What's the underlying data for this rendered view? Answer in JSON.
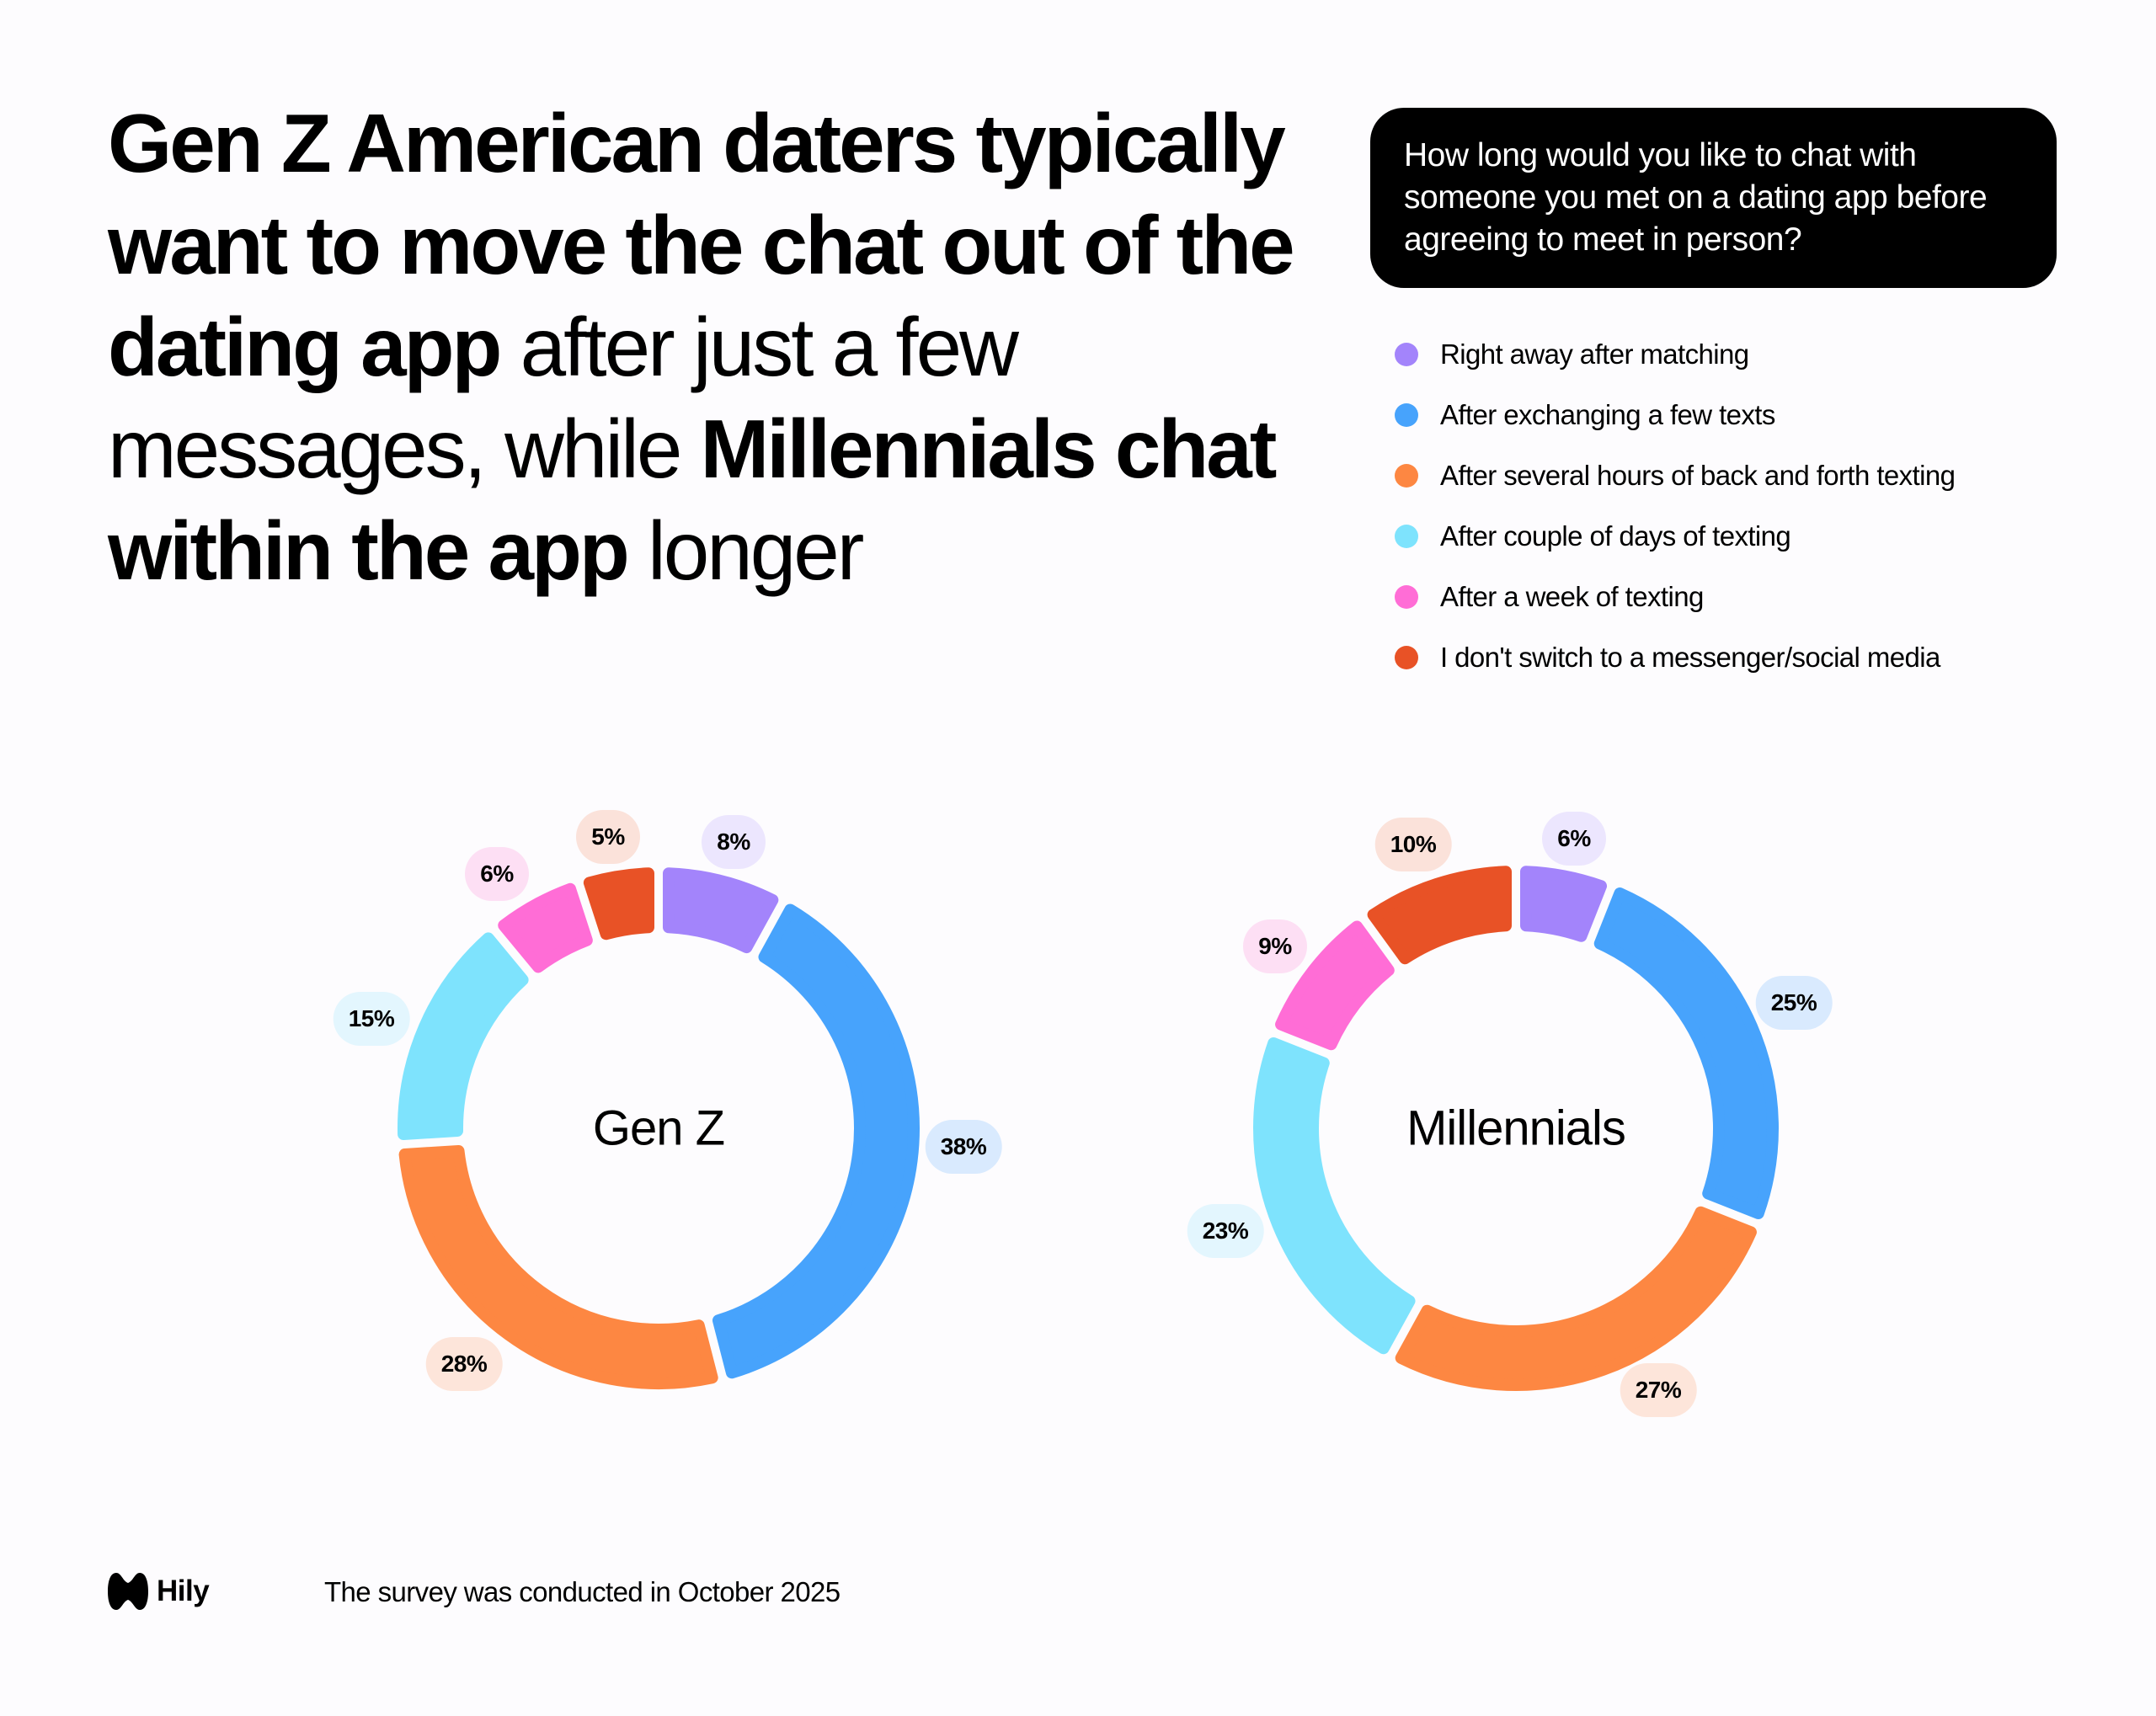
{
  "headline": {
    "part1_bold": "Gen Z American daters typically want to move the chat out of the dating app",
    "part2_regular": " after just a few messages, while ",
    "part3_bold": "Millennials chat within the app",
    "part4_regular": " longer"
  },
  "question": "How long would you like to chat with someone you met on a dating app before agreeing to meet in person?",
  "legend": [
    {
      "label": "Right away after matching",
      "color": "#a384fb"
    },
    {
      "label": "After exchanging a few texts",
      "color": "#47a3fc"
    },
    {
      "label": "After several hours of back and forth texting",
      "color": "#fd8742"
    },
    {
      "label": "After couple of days of texting",
      "color": "#7ee3fd"
    },
    {
      "label": "After a week of texting",
      "color": "#ff6dd6"
    },
    {
      "label": "I don't switch to a messenger/social media",
      "color": "#e85226"
    }
  ],
  "footer": {
    "brand": "Hily",
    "note": "The survey was conducted in October 2025"
  },
  "chart_data": [
    {
      "type": "pie",
      "title": "Gen Z",
      "categories": [
        "Right away after matching",
        "After exchanging a few texts",
        "After several hours of back and forth texting",
        "After couple of days of texting",
        "After a week of texting",
        "I don't switch to a messenger/social media"
      ],
      "values": [
        8,
        38,
        28,
        15,
        6,
        5
      ],
      "labels": [
        "8%",
        "38%",
        "28%",
        "15%",
        "6%",
        "5%"
      ],
      "colors": [
        "#a384fb",
        "#47a3fc",
        "#fd8742",
        "#7ee3fd",
        "#ff6dd6",
        "#e85226"
      ],
      "badge_colors": [
        "#ece6fe",
        "#d9eafe",
        "#fde5da",
        "#e3f6fe",
        "#fddff4",
        "#fbe2da"
      ],
      "center": [
        782,
        1340
      ],
      "outer_radius": 310,
      "inner_radius": 232,
      "badge_positions": [
        [
          871,
          1000
        ],
        [
          1144,
          1362
        ],
        [
          551,
          1620
        ],
        [
          441,
          1210
        ],
        [
          590,
          1038
        ],
        [
          722,
          994
        ]
      ]
    },
    {
      "type": "pie",
      "title": "Millennials",
      "categories": [
        "Right away after matching",
        "After exchanging a few texts",
        "After several hours of back and forth texting",
        "After couple of days of texting",
        "After a week of texting",
        "I don't switch to a messenger/social media"
      ],
      "values": [
        6,
        25,
        27,
        23,
        9,
        10
      ],
      "labels": [
        "6%",
        "25%",
        "27%",
        "23%",
        "9%",
        "10%"
      ],
      "colors": [
        "#a384fb",
        "#47a3fc",
        "#fd8742",
        "#7ee3fd",
        "#ff6dd6",
        "#e85226"
      ],
      "badge_colors": [
        "#ece6fe",
        "#d9eafe",
        "#fde5da",
        "#e3f6fe",
        "#fddff4",
        "#fbe2da"
      ],
      "center": [
        1800,
        1340
      ],
      "outer_radius": 312,
      "inner_radius": 234,
      "badge_positions": [
        [
          1869,
          996
        ],
        [
          2130,
          1191
        ],
        [
          1969,
          1651
        ],
        [
          1455,
          1462
        ],
        [
          1514,
          1124
        ],
        [
          1678,
          1003
        ]
      ]
    }
  ]
}
